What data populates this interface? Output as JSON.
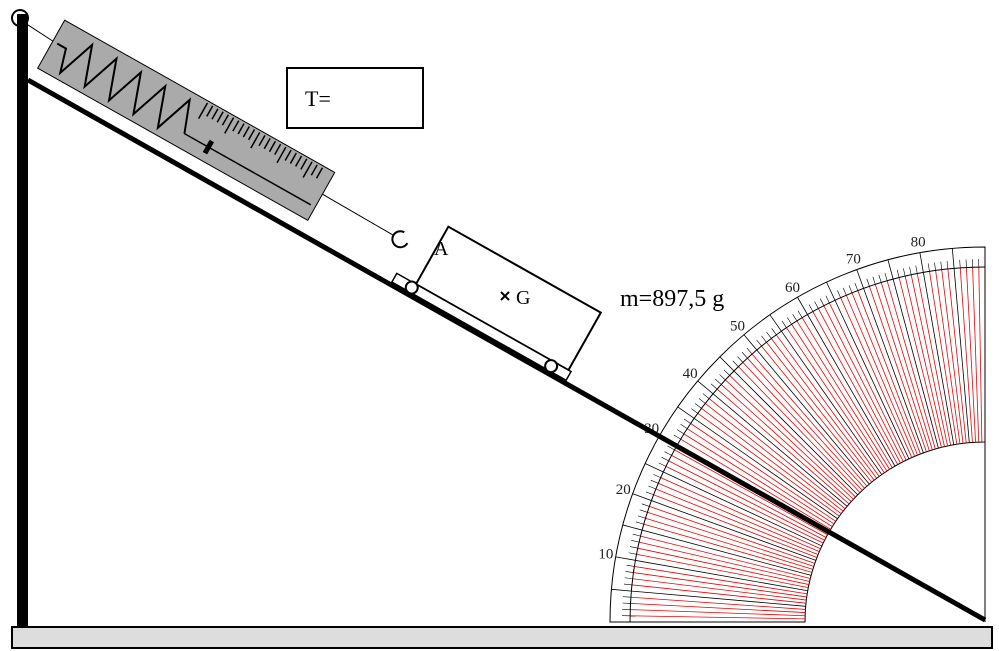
{
  "tension_box": {
    "label": "T="
  },
  "block": {
    "point_label": "A",
    "center_label": "G"
  },
  "mass_label": "m=897,5 g",
  "protractor": {
    "labels": [
      10,
      20,
      30,
      40,
      50,
      60,
      70,
      80
    ]
  }
}
